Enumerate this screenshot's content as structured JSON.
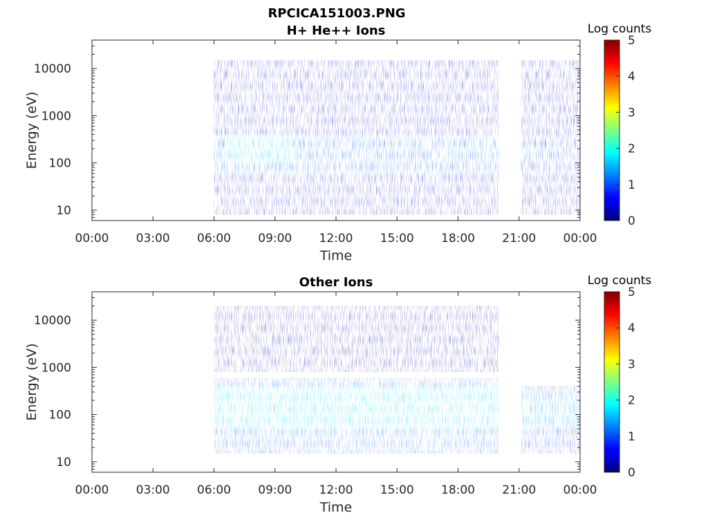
{
  "figure_title": "RPCICA151003.PNG",
  "chart_data": [
    {
      "type": "heatmap",
      "title": "H+ He++ Ions",
      "xlabel": "Time",
      "ylabel": "Energy (eV)",
      "x_ticks": [
        "00:00",
        "03:00",
        "06:00",
        "09:00",
        "12:00",
        "15:00",
        "18:00",
        "21:00",
        "00:00"
      ],
      "x_range_hours": [
        0,
        24
      ],
      "y_scale": "log",
      "y_range_eV": [
        6,
        40000
      ],
      "y_ticks": [
        10,
        100,
        1000,
        10000
      ],
      "y_tick_labels": [
        "10",
        "100",
        "1000",
        "10000"
      ],
      "colorbar": {
        "label": "Log counts",
        "range": [
          0,
          5
        ],
        "ticks": [
          "0",
          "1",
          "2",
          "3",
          "4",
          "5"
        ],
        "colormap": "jet"
      },
      "data_coverage_hours": [
        [
          6.0,
          20.0
        ],
        [
          21.1,
          24.0
        ]
      ],
      "data_gaps_hours": [
        [
          0.0,
          6.0
        ],
        [
          20.0,
          21.1
        ]
      ],
      "bands": [
        {
          "time_hours": [
            6.0,
            20.0
          ],
          "energy_eV": [
            8,
            15000
          ],
          "log_counts": 0.4
        },
        {
          "time_hours": [
            6.0,
            20.0
          ],
          "energy_eV": [
            60,
            400
          ],
          "log_counts": 1.2
        },
        {
          "time_hours": [
            6.5,
            10.0
          ],
          "energy_eV": [
            100,
            400
          ],
          "log_counts": 1.7
        },
        {
          "time_hours": [
            21.1,
            24.0
          ],
          "energy_eV": [
            8,
            15000
          ],
          "log_counts": 0.4
        },
        {
          "time_hours": [
            21.1,
            24.0
          ],
          "energy_eV": [
            60,
            300
          ],
          "log_counts": 1.0
        }
      ]
    },
    {
      "type": "heatmap",
      "title": "Other Ions",
      "xlabel": "Time",
      "ylabel": "Energy (eV)",
      "x_ticks": [
        "00:00",
        "03:00",
        "06:00",
        "09:00",
        "12:00",
        "15:00",
        "18:00",
        "21:00",
        "00:00"
      ],
      "x_range_hours": [
        0,
        24
      ],
      "y_scale": "log",
      "y_range_eV": [
        6,
        40000
      ],
      "y_ticks": [
        10,
        100,
        1000,
        10000
      ],
      "y_tick_labels": [
        "10",
        "100",
        "1000",
        "10000"
      ],
      "colorbar": {
        "label": "Log counts",
        "range": [
          0,
          5
        ],
        "ticks": [
          "0",
          "1",
          "2",
          "3",
          "4",
          "5"
        ],
        "colormap": "jet"
      },
      "data_coverage_hours": [
        [
          6.0,
          20.0
        ],
        [
          21.1,
          24.0
        ]
      ],
      "data_gaps_hours": [
        [
          0.0,
          6.0
        ],
        [
          20.0,
          21.1
        ]
      ],
      "bands": [
        {
          "time_hours": [
            6.0,
            20.0
          ],
          "energy_eV": [
            15,
            600
          ],
          "log_counts": 1.0
        },
        {
          "time_hours": [
            6.0,
            20.0
          ],
          "energy_eV": [
            50,
            400
          ],
          "log_counts": 1.8
        },
        {
          "time_hours": [
            6.0,
            20.0
          ],
          "energy_eV": [
            36,
            46
          ],
          "log_counts": 1.3
        },
        {
          "time_hours": [
            6.0,
            20.0
          ],
          "energy_eV": [
            800,
            20000
          ],
          "log_counts": 0.2
        },
        {
          "time_hours": [
            21.1,
            24.0
          ],
          "energy_eV": [
            15,
            400
          ],
          "log_counts": 0.9
        },
        {
          "time_hours": [
            21.1,
            24.0
          ],
          "energy_eV": [
            50,
            250
          ],
          "log_counts": 1.5
        }
      ]
    }
  ]
}
